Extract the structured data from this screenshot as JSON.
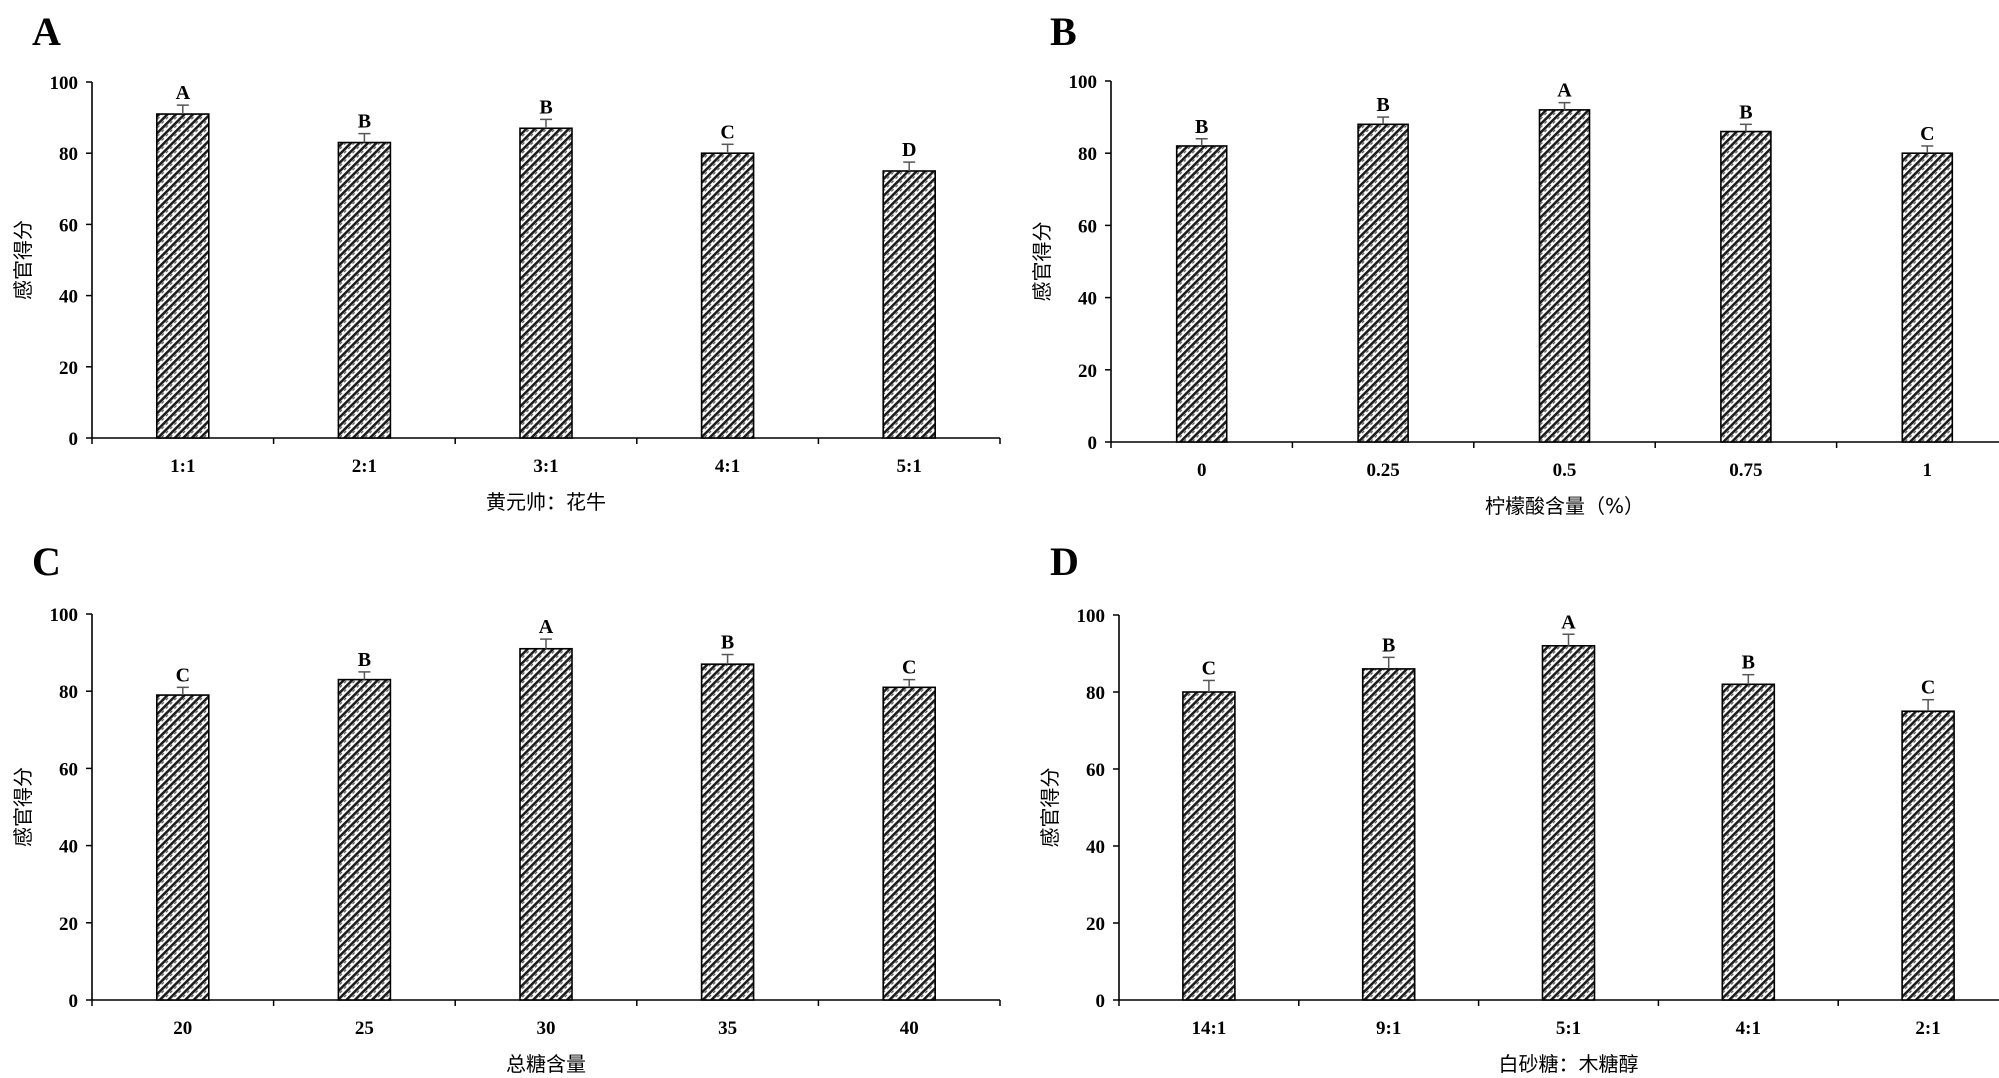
{
  "chart_data": [
    {
      "panel": "A",
      "type": "bar",
      "categories": [
        "1:1",
        "2:1",
        "3:1",
        "4:1",
        "5:1"
      ],
      "values": [
        91,
        83,
        87,
        80,
        75
      ],
      "errors": [
        2.5,
        2.5,
        2.5,
        2.5,
        2.5
      ],
      "significance": [
        "A",
        "B",
        "B",
        "C",
        "D"
      ],
      "xlabel": "黄元帅：花牛",
      "ylabel": "感官得分",
      "ylim": [
        0,
        100
      ],
      "yticks": [
        0,
        20,
        40,
        60,
        80,
        100
      ]
    },
    {
      "panel": "B",
      "type": "bar",
      "categories": [
        "0",
        "0.25",
        "0.5",
        "0.75",
        "1"
      ],
      "values": [
        82,
        88,
        92,
        86,
        80
      ],
      "errors": [
        2,
        2,
        2,
        2,
        2
      ],
      "significance": [
        "B",
        "B",
        "A",
        "B",
        "C"
      ],
      "xlabel": "柠檬酸含量（%）",
      "ylabel": "感官得分",
      "ylim": [
        0,
        100
      ],
      "yticks": [
        0,
        20,
        40,
        60,
        80,
        100
      ]
    },
    {
      "panel": "C",
      "type": "bar",
      "categories": [
        "20",
        "25",
        "30",
        "35",
        "40"
      ],
      "values": [
        79,
        83,
        91,
        87,
        81
      ],
      "errors": [
        2,
        2,
        2.5,
        2.5,
        2
      ],
      "significance": [
        "C",
        "B",
        "A",
        "B",
        "C"
      ],
      "xlabel": "总糖含量",
      "ylabel": "感官得分",
      "ylim": [
        0,
        100
      ],
      "yticks": [
        0,
        20,
        40,
        60,
        80,
        100
      ]
    },
    {
      "panel": "D",
      "type": "bar",
      "categories": [
        "14:1",
        "9:1",
        "5:1",
        "4:1",
        "2:1"
      ],
      "values": [
        80,
        86,
        92,
        82,
        75
      ],
      "errors": [
        3,
        3,
        3,
        2.5,
        3
      ],
      "significance": [
        "C",
        "B",
        "A",
        "B",
        "C"
      ],
      "xlabel": "白砂糖：木糖醇",
      "ylabel": "感官得分",
      "ylim": [
        0,
        100
      ],
      "yticks": [
        0,
        20,
        40,
        60,
        80,
        100
      ]
    }
  ]
}
